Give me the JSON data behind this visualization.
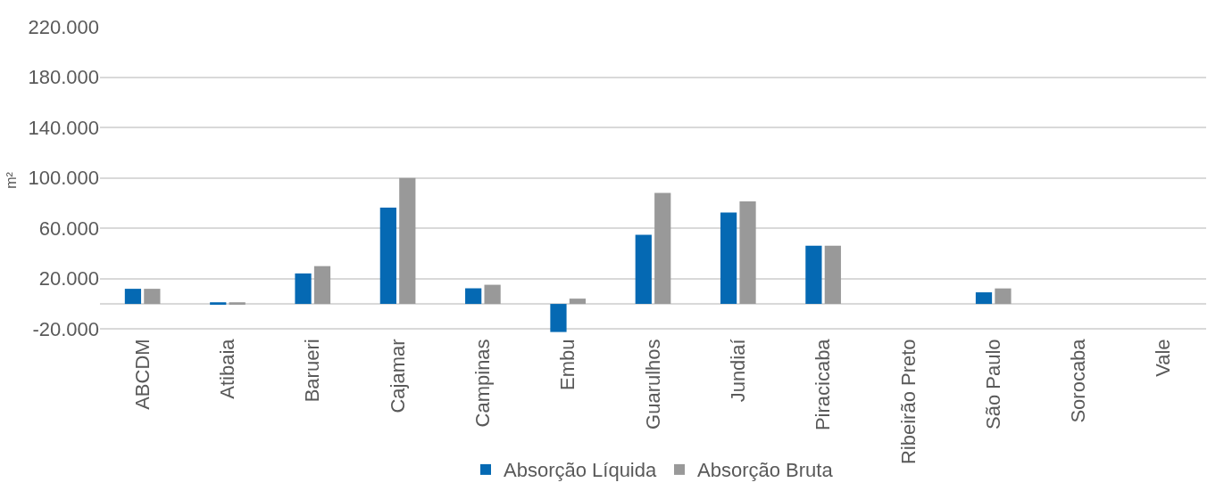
{
  "chart_data": {
    "type": "bar",
    "ylabel": "m²",
    "categories": [
      "ABCDM",
      "Atibaia",
      "Barueri",
      "Cajamar",
      "Campinas",
      "Embu",
      "Guarulhos",
      "Jundiaí",
      "Piracicaba",
      "Ribeirão Preto",
      "São Paulo",
      "Sorocaba",
      "Vale"
    ],
    "series": [
      {
        "name": "Absorção Líquida",
        "color": "#0569b3",
        "values": [
          12000,
          1300,
          24200,
          76500,
          12400,
          -22300,
          54900,
          72600,
          46200,
          0,
          9200,
          0,
          0
        ]
      },
      {
        "name": "Absorção Bruta",
        "color": "#999999",
        "values": [
          12000,
          1300,
          30000,
          100000,
          15200,
          4200,
          88100,
          81300,
          46200,
          0,
          12300,
          0,
          0
        ]
      }
    ],
    "ylim": [
      -24000,
      220000
    ],
    "yticks": [
      {
        "value": -20000,
        "label": "-20.000"
      },
      {
        "value": 20000,
        "label": "20.000"
      },
      {
        "value": 60000,
        "label": "60.000"
      },
      {
        "value": 100000,
        "label": "100.000"
      },
      {
        "value": 140000,
        "label": "140.000"
      },
      {
        "value": 180000,
        "label": "180.000"
      },
      {
        "value": 220000,
        "label": "220.000"
      }
    ],
    "grid": "y",
    "legend": "bottom"
  }
}
